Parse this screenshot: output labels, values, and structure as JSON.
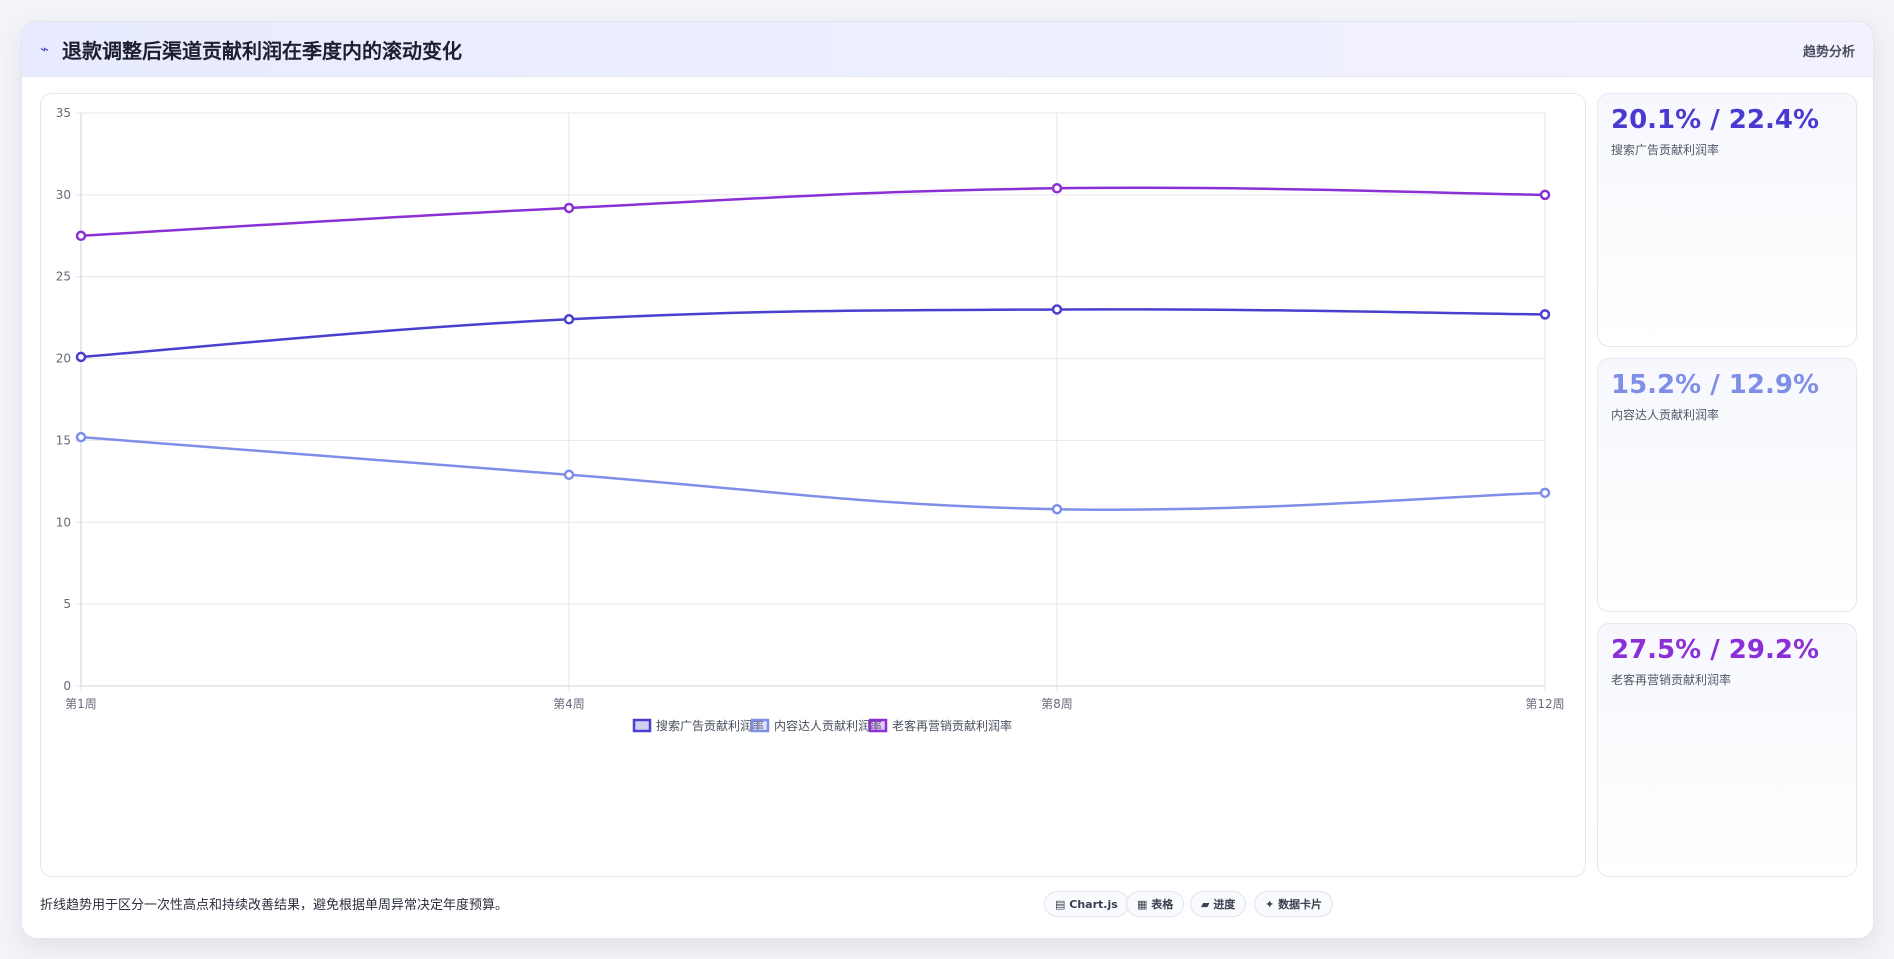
{
  "header": {
    "icon": "trend-line-icon",
    "title": "退款调整后渠道贡献利润在季度内的滚动变化",
    "badge": "趋势分析"
  },
  "chart_data": {
    "type": "line",
    "categories": [
      "第1周",
      "第4周",
      "第8周",
      "第12周"
    ],
    "series": [
      {
        "name": "搜索广告贡献利润率",
        "color": "#4a40d0",
        "values": [
          20.1,
          22.4,
          23.0,
          22.7
        ]
      },
      {
        "name": "内容达人贡献利润率",
        "color": "#7f8fe8",
        "values": [
          15.2,
          12.9,
          10.8,
          11.8
        ]
      },
      {
        "name": "老客再营销贡献利润率",
        "color": "#8b2fd6",
        "values": [
          27.5,
          29.2,
          30.4,
          30.0
        ]
      }
    ],
    "ylim": [
      0,
      35
    ],
    "yticks": [
      0,
      5,
      10,
      15,
      20,
      25,
      30,
      35
    ],
    "grid": true,
    "legend": "bottom-center"
  },
  "stats": [
    {
      "value": "20.1% / 22.4%",
      "label": "搜索广告贡献利润率",
      "color": "#4a3bd0"
    },
    {
      "value": "15.2% / 12.9%",
      "label": "内容达人贡献利润率",
      "color": "#7f8fe8"
    },
    {
      "value": "27.5% / 29.2%",
      "label": "老客再营销贡献利润率",
      "color": "#8b2fd6"
    }
  ],
  "footnote": "折线趋势用于区分一次性高点和持续改善结果，避免根据单周异常决定年度预算。",
  "chips": [
    {
      "icon": "chart-icon",
      "glyph": "▤",
      "label": "Chart.js"
    },
    {
      "icon": "table-icon",
      "glyph": "▦",
      "label": "表格"
    },
    {
      "icon": "progress-icon",
      "glyph": "▰",
      "label": "进度"
    },
    {
      "icon": "card-icon",
      "glyph": "✦",
      "label": "数据卡片"
    }
  ]
}
